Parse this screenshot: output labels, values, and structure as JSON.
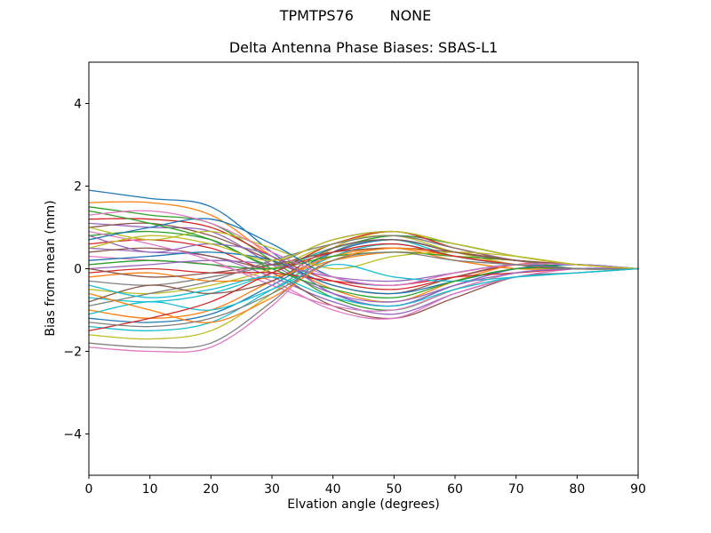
{
  "figure": {
    "background": "#ffffff",
    "spine_color": "#000000"
  },
  "chart_data": {
    "type": "line",
    "suptitle": "TPMTPS76        NONE",
    "title": "Delta Antenna Phase Biases: SBAS-L1",
    "xlabel": "Elvation angle (degrees)",
    "ylabel": "Bias from mean (mm)",
    "xlim": [
      0,
      90
    ],
    "ylim": [
      -5,
      5
    ],
    "xticks": [
      0,
      10,
      20,
      30,
      40,
      50,
      60,
      70,
      80,
      90
    ],
    "yticks": [
      -4,
      -2,
      0,
      2,
      4
    ],
    "grid": false,
    "legend": "none",
    "x": [
      0,
      10,
      20,
      30,
      40,
      50,
      60,
      70,
      80,
      90
    ],
    "palette": [
      "#1f77b4",
      "#ff7f0e",
      "#2ca02c",
      "#d62728",
      "#9467bd",
      "#8c564b",
      "#e377c2",
      "#7f7f7f",
      "#bcbd22",
      "#17becf"
    ],
    "series": [
      {
        "values": [
          1.9,
          1.7,
          1.5,
          0.4,
          -0.6,
          -0.9,
          -0.4,
          0.0,
          0.1,
          0
        ]
      },
      {
        "values": [
          1.6,
          1.6,
          1.3,
          0.3,
          -0.5,
          -0.8,
          -0.3,
          0.1,
          0.1,
          0
        ]
      },
      {
        "values": [
          1.5,
          1.3,
          1.1,
          0.2,
          -0.7,
          -1.0,
          -0.5,
          -0.1,
          0.0,
          0
        ]
      },
      {
        "values": [
          1.2,
          1.2,
          1.0,
          0.3,
          -0.3,
          -0.5,
          -0.2,
          0.1,
          0.1,
          0
        ]
      },
      {
        "values": [
          1.1,
          1.0,
          0.9,
          0.1,
          -0.6,
          -0.8,
          -0.4,
          0.0,
          0.0,
          0
        ]
      },
      {
        "values": [
          1.0,
          1.1,
          0.8,
          0.2,
          -0.4,
          -0.6,
          -0.2,
          0.1,
          0.0,
          0
        ]
      },
      {
        "values": [
          -1.9,
          -2.0,
          -1.9,
          -0.9,
          0.5,
          0.8,
          0.5,
          0.2,
          0.0,
          0
        ]
      },
      {
        "values": [
          -1.8,
          -1.9,
          -1.8,
          -0.8,
          0.4,
          0.7,
          0.4,
          0.1,
          0.0,
          0
        ]
      },
      {
        "values": [
          -1.6,
          -1.7,
          -1.5,
          -0.6,
          0.5,
          0.9,
          0.5,
          0.2,
          0.1,
          0
        ]
      },
      {
        "values": [
          -1.4,
          -1.5,
          -1.3,
          -0.5,
          0.3,
          0.6,
          0.3,
          0.1,
          0.0,
          0
        ]
      },
      {
        "values": [
          -1.2,
          -1.3,
          -1.1,
          -0.4,
          0.4,
          0.7,
          0.4,
          0.2,
          0.1,
          0
        ]
      },
      {
        "values": [
          -1.0,
          -1.2,
          -1.0,
          -0.3,
          0.3,
          0.5,
          0.2,
          0.0,
          0.0,
          0
        ]
      },
      {
        "values": [
          0.8,
          0.9,
          0.7,
          0.1,
          0.5,
          0.8,
          0.6,
          0.3,
          0.1,
          0
        ]
      },
      {
        "values": [
          0.6,
          0.7,
          0.5,
          0.0,
          0.6,
          0.9,
          0.5,
          0.2,
          0.1,
          0
        ]
      },
      {
        "values": [
          0.5,
          0.4,
          0.3,
          -0.2,
          -0.8,
          -1.1,
          -0.6,
          -0.2,
          0.0,
          0
        ]
      },
      {
        "values": [
          0.4,
          0.5,
          0.3,
          -0.1,
          -0.9,
          -1.2,
          -0.7,
          -0.2,
          -0.1,
          0
        ]
      },
      {
        "values": [
          0.3,
          0.2,
          0.1,
          -0.3,
          -1.0,
          -1.2,
          -0.6,
          -0.2,
          0.0,
          0
        ]
      },
      {
        "values": [
          -0.3,
          -0.4,
          -0.2,
          0.1,
          0.7,
          0.9,
          0.6,
          0.3,
          0.1,
          0
        ]
      },
      {
        "values": [
          -0.5,
          -0.6,
          -0.4,
          0.0,
          0.6,
          0.8,
          0.4,
          0.1,
          0.0,
          0
        ]
      },
      {
        "values": [
          -0.7,
          -0.8,
          -0.6,
          -0.1,
          0.5,
          0.7,
          0.3,
          0.1,
          0.0,
          0
        ]
      },
      {
        "values": [
          0.2,
          0.3,
          0.4,
          0.2,
          -0.4,
          -0.6,
          -0.3,
          0.0,
          0.1,
          0
        ]
      },
      {
        "values": [
          -0.2,
          -0.1,
          -0.3,
          -0.2,
          0.2,
          0.4,
          0.3,
          0.2,
          0.1,
          0
        ]
      },
      {
        "values": [
          0.1,
          0.2,
          0.1,
          0.0,
          0.3,
          0.4,
          0.3,
          0.2,
          0.0,
          0
        ]
      },
      {
        "values": [
          -0.1,
          0.0,
          -0.1,
          -0.1,
          -0.3,
          -0.4,
          -0.2,
          -0.1,
          0.0,
          0
        ]
      },
      {
        "values": [
          0.0,
          0.1,
          0.2,
          0.1,
          -0.2,
          -0.3,
          -0.1,
          0.1,
          0.0,
          0
        ]
      },
      {
        "values": [
          0.0,
          -0.2,
          -0.1,
          0.1,
          0.4,
          0.5,
          0.4,
          0.2,
          0.1,
          0
        ]
      },
      {
        "values": [
          0.9,
          0.6,
          0.2,
          -0.4,
          -0.9,
          -1.0,
          -0.5,
          -0.1,
          0.0,
          0
        ]
      },
      {
        "values": [
          -0.9,
          -0.6,
          -0.3,
          0.2,
          0.6,
          0.8,
          0.5,
          0.2,
          0.1,
          0
        ]
      },
      {
        "values": [
          1.0,
          0.7,
          0.9,
          0.5,
          0.0,
          0.3,
          0.4,
          0.3,
          0.1,
          0
        ]
      },
      {
        "values": [
          -1.1,
          -0.8,
          -1.0,
          -0.5,
          0.1,
          -0.2,
          -0.3,
          -0.2,
          -0.1,
          0
        ]
      },
      {
        "values": [
          0.7,
          1.0,
          1.2,
          0.6,
          -0.2,
          -0.4,
          -0.1,
          0.1,
          0.0,
          0
        ]
      },
      {
        "values": [
          -0.6,
          -1.0,
          -1.3,
          -0.7,
          0.2,
          0.5,
          0.3,
          0.1,
          0.0,
          0
        ]
      },
      {
        "values": [
          1.4,
          1.1,
          0.7,
          0.0,
          -0.5,
          -0.7,
          -0.3,
          0.0,
          0.0,
          0
        ]
      },
      {
        "values": [
          -1.5,
          -1.2,
          -0.8,
          -0.1,
          0.4,
          0.6,
          0.3,
          0.1,
          0.0,
          0
        ]
      },
      {
        "values": [
          0.8,
          0.4,
          0.6,
          0.3,
          -0.6,
          -0.9,
          -0.4,
          -0.1,
          0.0,
          0
        ]
      },
      {
        "values": [
          -0.8,
          -0.4,
          -0.6,
          -0.3,
          0.5,
          0.7,
          0.4,
          0.2,
          0.1,
          0
        ]
      },
      {
        "values": [
          1.3,
          1.4,
          1.1,
          0.4,
          -0.2,
          -0.4,
          -0.1,
          0.1,
          0.1,
          0
        ]
      },
      {
        "values": [
          -1.3,
          -1.4,
          -1.2,
          -0.6,
          0.2,
          0.4,
          0.2,
          0.1,
          0.0,
          0
        ]
      },
      {
        "values": [
          0.5,
          0.8,
          0.6,
          0.2,
          0.7,
          0.9,
          0.6,
          0.3,
          0.1,
          0
        ]
      },
      {
        "values": [
          -0.4,
          -0.7,
          -0.5,
          -0.2,
          -0.7,
          -0.9,
          -0.5,
          -0.2,
          -0.1,
          0
        ]
      }
    ]
  }
}
